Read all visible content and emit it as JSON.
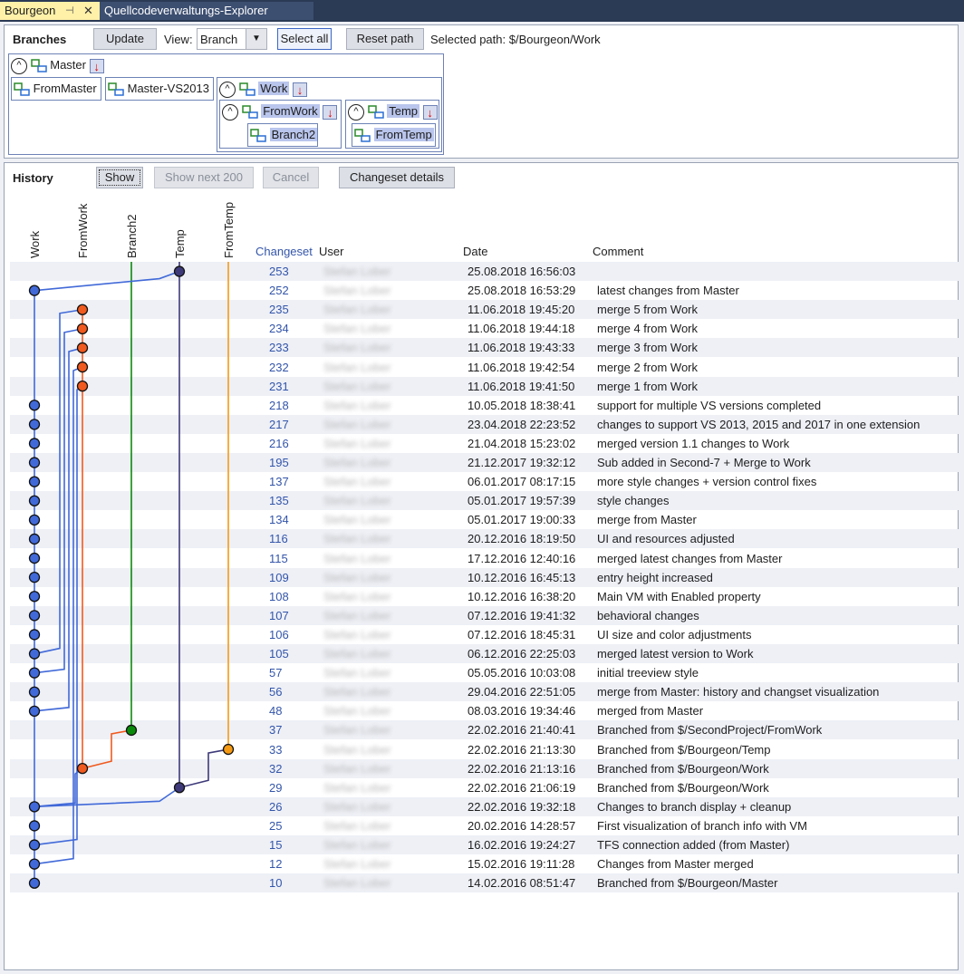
{
  "tabs": [
    {
      "label": "Bourgeon",
      "active": true
    },
    {
      "label": "Quellcodeverwaltungs-Explorer",
      "active": false
    }
  ],
  "toolbar": {
    "title": "Branches",
    "update": "Update",
    "view_label": "View:",
    "view_value": "Branch",
    "select_all": "Select all",
    "reset_path": "Reset path",
    "selected_path": "Selected path: $/Bourgeon/Work"
  },
  "branch_tree": {
    "master": "Master",
    "from_master": "FromMaster",
    "master_vs2013": "Master-VS2013",
    "work": "Work",
    "from_work": "FromWork",
    "branch2": "Branch2",
    "temp": "Temp",
    "from_temp": "FromTemp"
  },
  "history": {
    "title": "History",
    "show": "Show",
    "show_next": "Show next 200",
    "cancel": "Cancel",
    "details": "Changeset details",
    "lanes": [
      "Work",
      "FromWork",
      "Branch2",
      "Temp",
      "FromTemp"
    ],
    "columns": {
      "changeset": "Changeset",
      "user": "User",
      "date": "Date",
      "comment": "Comment"
    },
    "rows": [
      {
        "cs": "253",
        "user": "Stefan Lober",
        "date": "25.08.2018 16:56:03",
        "comment": ""
      },
      {
        "cs": "252",
        "user": "Stefan Lober",
        "date": "25.08.2018 16:53:29",
        "comment": "latest changes from Master"
      },
      {
        "cs": "235",
        "user": "Stefan Lober",
        "date": "11.06.2018 19:45:20",
        "comment": "merge 5 from Work"
      },
      {
        "cs": "234",
        "user": "Stefan Lober",
        "date": "11.06.2018 19:44:18",
        "comment": "merge 4 from Work"
      },
      {
        "cs": "233",
        "user": "Stefan Lober",
        "date": "11.06.2018 19:43:33",
        "comment": "merge 3 from Work"
      },
      {
        "cs": "232",
        "user": "Stefan Lober",
        "date": "11.06.2018 19:42:54",
        "comment": "merge 2 from Work"
      },
      {
        "cs": "231",
        "user": "Stefan Lober",
        "date": "11.06.2018 19:41:50",
        "comment": "merge 1 from Work"
      },
      {
        "cs": "218",
        "user": "Stefan Lober",
        "date": "10.05.2018 18:38:41",
        "comment": "support for multiple VS versions completed"
      },
      {
        "cs": "217",
        "user": "Stefan Lober",
        "date": "23.04.2018 22:23:52",
        "comment": "changes to support VS 2013, 2015 and 2017 in one extension"
      },
      {
        "cs": "216",
        "user": "Stefan Lober",
        "date": "21.04.2018 15:23:02",
        "comment": "merged version 1.1 changes to Work"
      },
      {
        "cs": "195",
        "user": "Stefan Lober",
        "date": "21.12.2017 19:32:12",
        "comment": "Sub added in Second-7 + Merge to Work"
      },
      {
        "cs": "137",
        "user": "Stefan Lober",
        "date": "06.01.2017 08:17:15",
        "comment": "more style changes + version control fixes"
      },
      {
        "cs": "135",
        "user": "Stefan Lober",
        "date": "05.01.2017 19:57:39",
        "comment": "style changes"
      },
      {
        "cs": "134",
        "user": "Stefan Lober",
        "date": "05.01.2017 19:00:33",
        "comment": "merge from Master"
      },
      {
        "cs": "116",
        "user": "Stefan Lober",
        "date": "20.12.2016 18:19:50",
        "comment": "UI and resources adjusted"
      },
      {
        "cs": "115",
        "user": "Stefan Lober",
        "date": "17.12.2016 12:40:16",
        "comment": "merged latest changes from Master"
      },
      {
        "cs": "109",
        "user": "Stefan Lober",
        "date": "10.12.2016 16:45:13",
        "comment": "entry height increased"
      },
      {
        "cs": "108",
        "user": "Stefan Lober",
        "date": "10.12.2016 16:38:20",
        "comment": "Main VM with Enabled property"
      },
      {
        "cs": "107",
        "user": "Stefan Lober",
        "date": "07.12.2016 19:41:32",
        "comment": "behavioral changes"
      },
      {
        "cs": "106",
        "user": "Stefan Lober",
        "date": "07.12.2016 18:45:31",
        "comment": "UI size and color adjustments"
      },
      {
        "cs": "105",
        "user": "Stefan Lober",
        "date": "06.12.2016 22:25:03",
        "comment": "merged latest version to Work"
      },
      {
        "cs": "57",
        "user": "Stefan Lober",
        "date": "05.05.2016 10:03:08",
        "comment": "initial treeview style"
      },
      {
        "cs": "56",
        "user": "Stefan Lober",
        "date": "29.04.2016 22:51:05",
        "comment": "merge from Master: history and changset visualization"
      },
      {
        "cs": "48",
        "user": "Stefan Lober",
        "date": "08.03.2016 19:34:46",
        "comment": "merged from Master"
      },
      {
        "cs": "37",
        "user": "Stefan Lober",
        "date": "22.02.2016 21:40:41",
        "comment": "Branched from $/SecondProject/FromWork"
      },
      {
        "cs": "33",
        "user": "Stefan Lober",
        "date": "22.02.2016 21:13:30",
        "comment": "Branched from $/Bourgeon/Temp"
      },
      {
        "cs": "32",
        "user": "Stefan Lober",
        "date": "22.02.2016 21:13:16",
        "comment": "Branched from $/Bourgeon/Work"
      },
      {
        "cs": "29",
        "user": "Stefan Lober",
        "date": "22.02.2016 21:06:19",
        "comment": "Branched from $/Bourgeon/Work"
      },
      {
        "cs": "26",
        "user": "Stefan Lober",
        "date": "22.02.2016 19:32:18",
        "comment": "Changes to branch display + cleanup"
      },
      {
        "cs": "25",
        "user": "Stefan Lober",
        "date": "20.02.2016 14:28:57",
        "comment": "First visualization of branch info with VM"
      },
      {
        "cs": "15",
        "user": "Stefan Lober",
        "date": "16.02.2016 19:24:27",
        "comment": "TFS connection added (from Master)"
      },
      {
        "cs": "12",
        "user": "Stefan Lober",
        "date": "15.02.2016 19:11:28",
        "comment": "Changes from Master merged"
      },
      {
        "cs": "10",
        "user": "Stefan Lober",
        "date": "14.02.2016 08:51:47",
        "comment": "Branched from $/Bourgeon/Master"
      }
    ]
  },
  "colors": {
    "work": "#4169d8",
    "fromwork": "#f05a1e",
    "branch2": "#0a8a0a",
    "temp": "#3e3a7a",
    "fromtemp": "#f59a12",
    "accent": "#3355aa"
  }
}
